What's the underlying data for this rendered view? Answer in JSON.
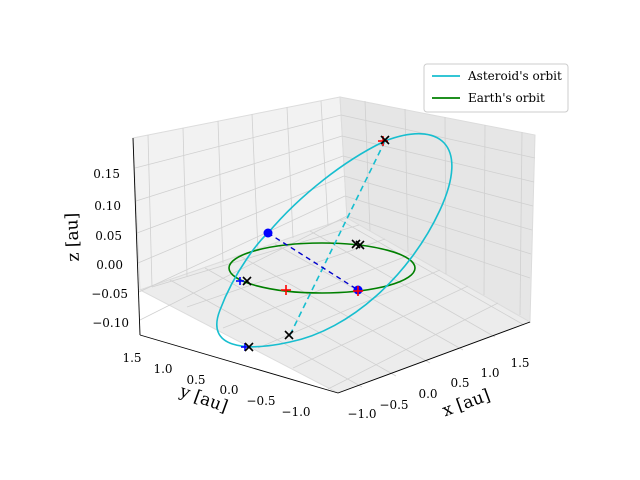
{
  "chart_data": {
    "type": "line",
    "projection": "3d",
    "series": [
      {
        "name": "Asteroid's orbit",
        "color": "#17becf"
      },
      {
        "name": "Earth's orbit",
        "color": "#008000"
      }
    ],
    "earth_orbit": {
      "radius_au": 1.0,
      "center": [
        0,
        0,
        0
      ]
    },
    "asteroid_orbit": {
      "semi_major_axis_au": 1.4,
      "eccentricity": 0.1,
      "inclination_deg": 7.4,
      "hidden_segment_style": "dashed"
    },
    "markers": {
      "blue_circles": [
        [
          -0.72,
          0.95,
          0.04
        ],
        [
          1.0,
          -0.05,
          -0.03
        ]
      ],
      "red_plus": [
        [
          -0.05,
          0.05,
          -0.05
        ],
        [
          0.95,
          0.15,
          0.18
        ]
      ],
      "black_x": [
        [
          -0.7,
          -0.72,
          0.0
        ],
        [
          0.45,
          0.9,
          0.0
        ],
        [
          1.1,
          -1.0,
          0.18
        ],
        [
          -0.98,
          0.65,
          -0.08
        ]
      ]
    },
    "xlabel": "x [au]",
    "ylabel": "y [au]",
    "zlabel": "z [au]",
    "xticks": [
      "−1.0",
      "−0.5",
      "0.0",
      "0.5",
      "1.0",
      "1.5"
    ],
    "yticks": [
      "1.5",
      "1.0",
      "0.5",
      "0.0",
      "−0.5",
      "−1.0"
    ],
    "zticks": [
      "0.15",
      "0.10",
      "0.05",
      "0.00",
      "−0.05",
      "−0.10"
    ],
    "legend_placement": "top-right",
    "grid": true
  }
}
